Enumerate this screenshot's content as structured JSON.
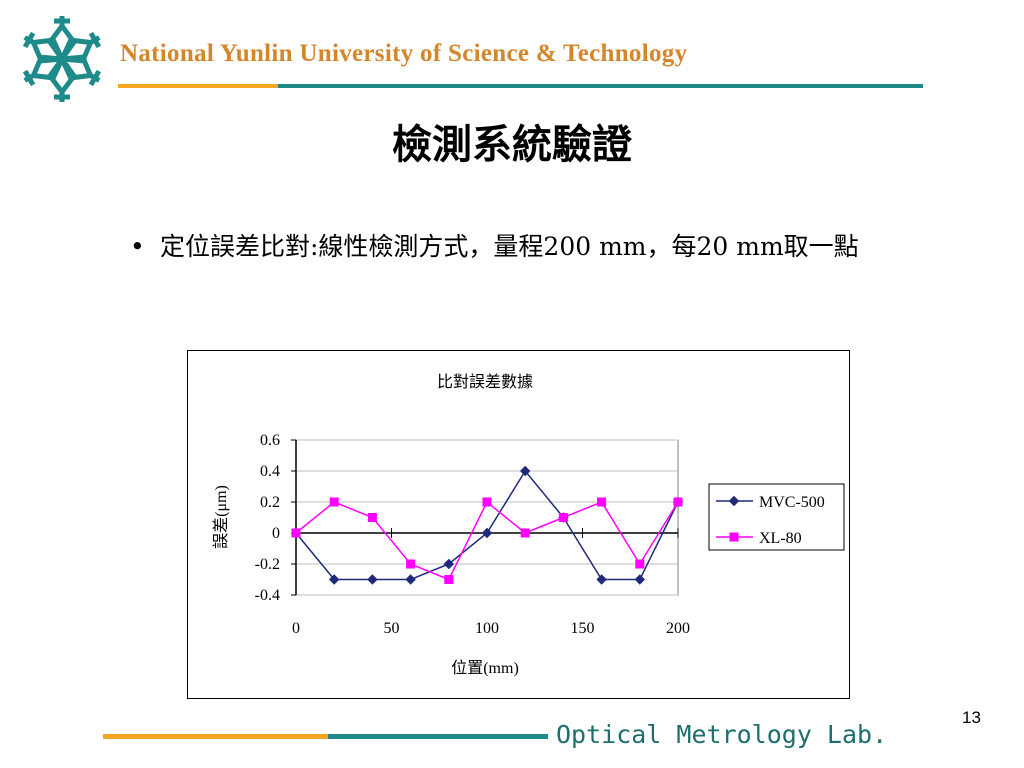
{
  "header": {
    "university": "National Yunlin University of Science & Technology",
    "logo_color": "#1e8a8a",
    "accent_orange": "#f5a623",
    "accent_teal": "#1e8a8a"
  },
  "slide": {
    "title": "檢測系統驗證",
    "bullet_symbol": "•",
    "bullet_text": "定位誤差比對:線性檢測方式，量程200 mm，每20 mm取一點"
  },
  "chart_data": {
    "type": "line",
    "title": "比對誤差數據",
    "xlabel": "位置(mm)",
    "ylabel": "誤差(μm)",
    "xlim": [
      0,
      200
    ],
    "ylim": [
      -0.4,
      0.6
    ],
    "x_ticks": [
      "0",
      "50",
      "100",
      "150",
      "200"
    ],
    "y_ticks": [
      "0.6",
      "0.4",
      "0.2",
      "0",
      "-0.2",
      "-0.4"
    ],
    "x": [
      0,
      20,
      40,
      60,
      80,
      100,
      120,
      140,
      160,
      180,
      200
    ],
    "grid": true,
    "legend_position": "right",
    "series": [
      {
        "name": "MVC-500",
        "color": "#1f2a7a",
        "marker": "diamond",
        "values": [
          0,
          -0.3,
          -0.3,
          -0.3,
          -0.2,
          0,
          0.4,
          0.1,
          -0.3,
          -0.3,
          0.2
        ]
      },
      {
        "name": "XL-80",
        "color": "#ff00ff",
        "marker": "square",
        "values": [
          0,
          0.2,
          0.1,
          -0.2,
          -0.3,
          0.2,
          0,
          0.1,
          0.2,
          -0.2,
          0.2
        ]
      }
    ]
  },
  "footer": {
    "lab_name": "Optical Metrology Lab.",
    "page_number": "13"
  }
}
